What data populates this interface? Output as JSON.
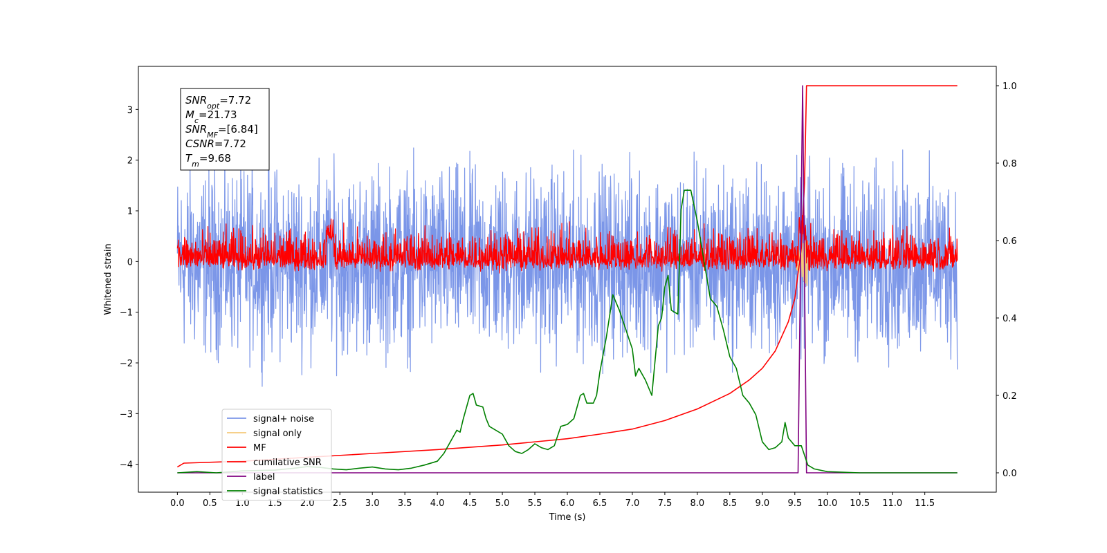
{
  "chart_data": {
    "type": "line",
    "xlabel": "Time (s)",
    "ylabel": "Whitened strain",
    "xlim": [
      -0.6,
      12.6
    ],
    "ylim": [
      -4.55,
      3.85
    ],
    "y2lim": [
      -0.05,
      1.05
    ],
    "x_ticks": [
      "0.0",
      "0.5",
      "1.0",
      "1.5",
      "2.0",
      "2.5",
      "3.0",
      "3.5",
      "4.0",
      "4.5",
      "5.0",
      "5.5",
      "6.0",
      "6.5",
      "7.0",
      "7.5",
      "8.0",
      "8.5",
      "9.0",
      "9.5",
      "10.0",
      "10.5",
      "11.0",
      "11.5"
    ],
    "y_ticks": [
      "3",
      "2",
      "1",
      "0",
      "−1",
      "−2",
      "−3",
      "−4"
    ],
    "y2_ticks": [
      "1.0",
      "0.8",
      "0.6",
      "0.4",
      "0.2",
      "0.0"
    ],
    "legend_position": "lower-left",
    "annotation": [
      {
        "base": "SNR",
        "sub": "opt",
        "value": "=7.72"
      },
      {
        "base": "M",
        "sub": "c",
        "value": "=21.73"
      },
      {
        "base": "SNR",
        "sub": "MF",
        "value": "=[6.84]"
      },
      {
        "base": "CSNR",
        "sub": "",
        "value": "=7.72"
      },
      {
        "base": "T",
        "sub": "m",
        "value": "=9.68"
      }
    ],
    "series": [
      {
        "name": "signal+ noise",
        "axis": "left",
        "color": "#7b96e8",
        "kind": "noise",
        "x_range": [
          0.0,
          12.0
        ],
        "center": 0.0,
        "band": [
          -2.6,
          2.6
        ]
      },
      {
        "name": "signal only",
        "axis": "left",
        "color": "#f5c97a",
        "kind": "chirp",
        "x_range": [
          9.45,
          9.7
        ],
        "center": 0.0,
        "peak": 0.5
      },
      {
        "name": "MF",
        "axis": "left",
        "color": "#ff0000",
        "kind": "noise",
        "x_range": [
          0.0,
          12.0
        ],
        "center": 0.05,
        "band": [
          -0.25,
          0.85
        ],
        "features": [
          {
            "x": 2.35,
            "value": 0.85
          },
          {
            "x": 9.62,
            "value": 0.95
          }
        ]
      },
      {
        "name": "cumilative SNR",
        "axis": "right",
        "color": "#ff0000",
        "x": [
          0.0,
          0.1,
          1.0,
          2.0,
          3.0,
          4.0,
          5.0,
          6.0,
          6.5,
          7.0,
          7.5,
          8.0,
          8.5,
          8.8,
          9.0,
          9.2,
          9.4,
          9.5,
          9.6,
          9.65,
          9.68,
          9.7,
          12.0
        ],
        "values": [
          0.015,
          0.025,
          0.03,
          0.04,
          0.05,
          0.06,
          0.072,
          0.088,
          0.1,
          0.113,
          0.135,
          0.165,
          0.205,
          0.24,
          0.27,
          0.315,
          0.39,
          0.45,
          0.58,
          0.75,
          1.0,
          1.0,
          1.0
        ]
      },
      {
        "name": "label",
        "axis": "right",
        "color": "#800080",
        "x": [
          0.0,
          9.55,
          9.62,
          9.68,
          12.0
        ],
        "values": [
          0.0,
          0.0,
          1.0,
          0.0,
          0.0
        ]
      },
      {
        "name": "signal statistics",
        "axis": "right",
        "color": "#008000",
        "x": [
          0.0,
          0.3,
          0.6,
          1.0,
          1.5,
          1.8,
          2.0,
          2.2,
          2.4,
          2.6,
          2.8,
          3.0,
          3.2,
          3.4,
          3.6,
          3.8,
          4.0,
          4.1,
          4.2,
          4.3,
          4.35,
          4.4,
          4.5,
          4.55,
          4.6,
          4.7,
          4.75,
          4.8,
          4.9,
          5.0,
          5.1,
          5.2,
          5.3,
          5.4,
          5.5,
          5.6,
          5.7,
          5.8,
          5.9,
          6.0,
          6.1,
          6.2,
          6.25,
          6.3,
          6.4,
          6.45,
          6.5,
          6.6,
          6.7,
          6.8,
          6.9,
          7.0,
          7.05,
          7.1,
          7.2,
          7.3,
          7.4,
          7.45,
          7.5,
          7.55,
          7.6,
          7.7,
          7.75,
          7.8,
          7.9,
          8.0,
          8.1,
          8.2,
          8.3,
          8.4,
          8.5,
          8.6,
          8.7,
          8.8,
          8.9,
          9.0,
          9.1,
          9.2,
          9.3,
          9.35,
          9.4,
          9.5,
          9.6,
          9.7,
          9.8,
          10.0,
          10.5,
          11.0,
          12.0
        ],
        "values": [
          0.0,
          0.003,
          0.0,
          0.005,
          0.007,
          0.012,
          0.016,
          0.014,
          0.01,
          0.008,
          0.012,
          0.015,
          0.01,
          0.008,
          0.012,
          0.02,
          0.03,
          0.05,
          0.08,
          0.11,
          0.105,
          0.14,
          0.2,
          0.205,
          0.175,
          0.17,
          0.14,
          0.12,
          0.11,
          0.1,
          0.07,
          0.055,
          0.05,
          0.06,
          0.075,
          0.065,
          0.06,
          0.07,
          0.12,
          0.125,
          0.14,
          0.2,
          0.205,
          0.18,
          0.18,
          0.2,
          0.26,
          0.35,
          0.46,
          0.42,
          0.37,
          0.32,
          0.25,
          0.27,
          0.24,
          0.2,
          0.38,
          0.4,
          0.48,
          0.51,
          0.42,
          0.41,
          0.68,
          0.73,
          0.73,
          0.65,
          0.55,
          0.45,
          0.43,
          0.37,
          0.3,
          0.27,
          0.2,
          0.18,
          0.15,
          0.08,
          0.06,
          0.065,
          0.08,
          0.13,
          0.09,
          0.07,
          0.07,
          0.02,
          0.01,
          0.003,
          0.0,
          0.0,
          0.0
        ]
      }
    ]
  }
}
